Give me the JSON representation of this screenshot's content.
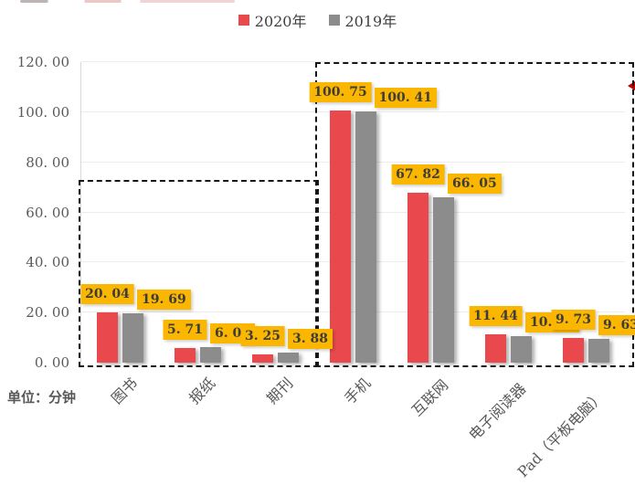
{
  "legend": {
    "items": [
      {
        "label": "2020年",
        "color": "#E9494D"
      },
      {
        "label": "2019年",
        "color": "#8C8C8C"
      }
    ]
  },
  "unit_label": "单位：分钟",
  "y_axis": {
    "tick_labels": [
      "120. 00",
      "100. 00",
      "80. 00",
      "60. 00",
      "40. 00",
      "20. 00",
      "0. 00"
    ]
  },
  "chart_data": {
    "type": "bar",
    "title": "",
    "categories": [
      "图书",
      "报纸",
      "期刊",
      "手机",
      "互联网",
      "电子阅读器",
      "Pad（平板电脑）"
    ],
    "series": [
      {
        "name": "2020年",
        "color": "#E9494D",
        "values": [
          20.04,
          5.71,
          3.25,
          100.75,
          67.82,
          11.44,
          9.73
        ],
        "labels": [
          "20. 04",
          "5. 71",
          "3. 25",
          "100. 75",
          "67. 82",
          "11. 44",
          "9. 73"
        ]
      },
      {
        "name": "2019年",
        "color": "#8C8C8C",
        "values": [
          19.69,
          6.08,
          3.88,
          100.41,
          66.05,
          10.7,
          9.63
        ],
        "labels": [
          "19. 69",
          "6. 08",
          "3. 88",
          "100. 41",
          "66. 05",
          "10. 70",
          "9. 63"
        ]
      }
    ],
    "ylim": [
      0,
      120
    ],
    "y_tick_step": 20,
    "grid": true,
    "legend_position": "top-center",
    "xlabel": "",
    "ylabel": "单位：分钟",
    "data_label_bg": "#FBB600",
    "annotations": [
      {
        "name": "print-media-box",
        "style": "black-dashed-rectangle",
        "covers": [
          "图书",
          "报纸",
          "期刊"
        ]
      },
      {
        "name": "digital-media-box",
        "style": "black-dashed-rectangle",
        "covers": [
          "手机",
          "互联网",
          "电子阅读器",
          "Pad（平板电脑）"
        ]
      }
    ]
  }
}
